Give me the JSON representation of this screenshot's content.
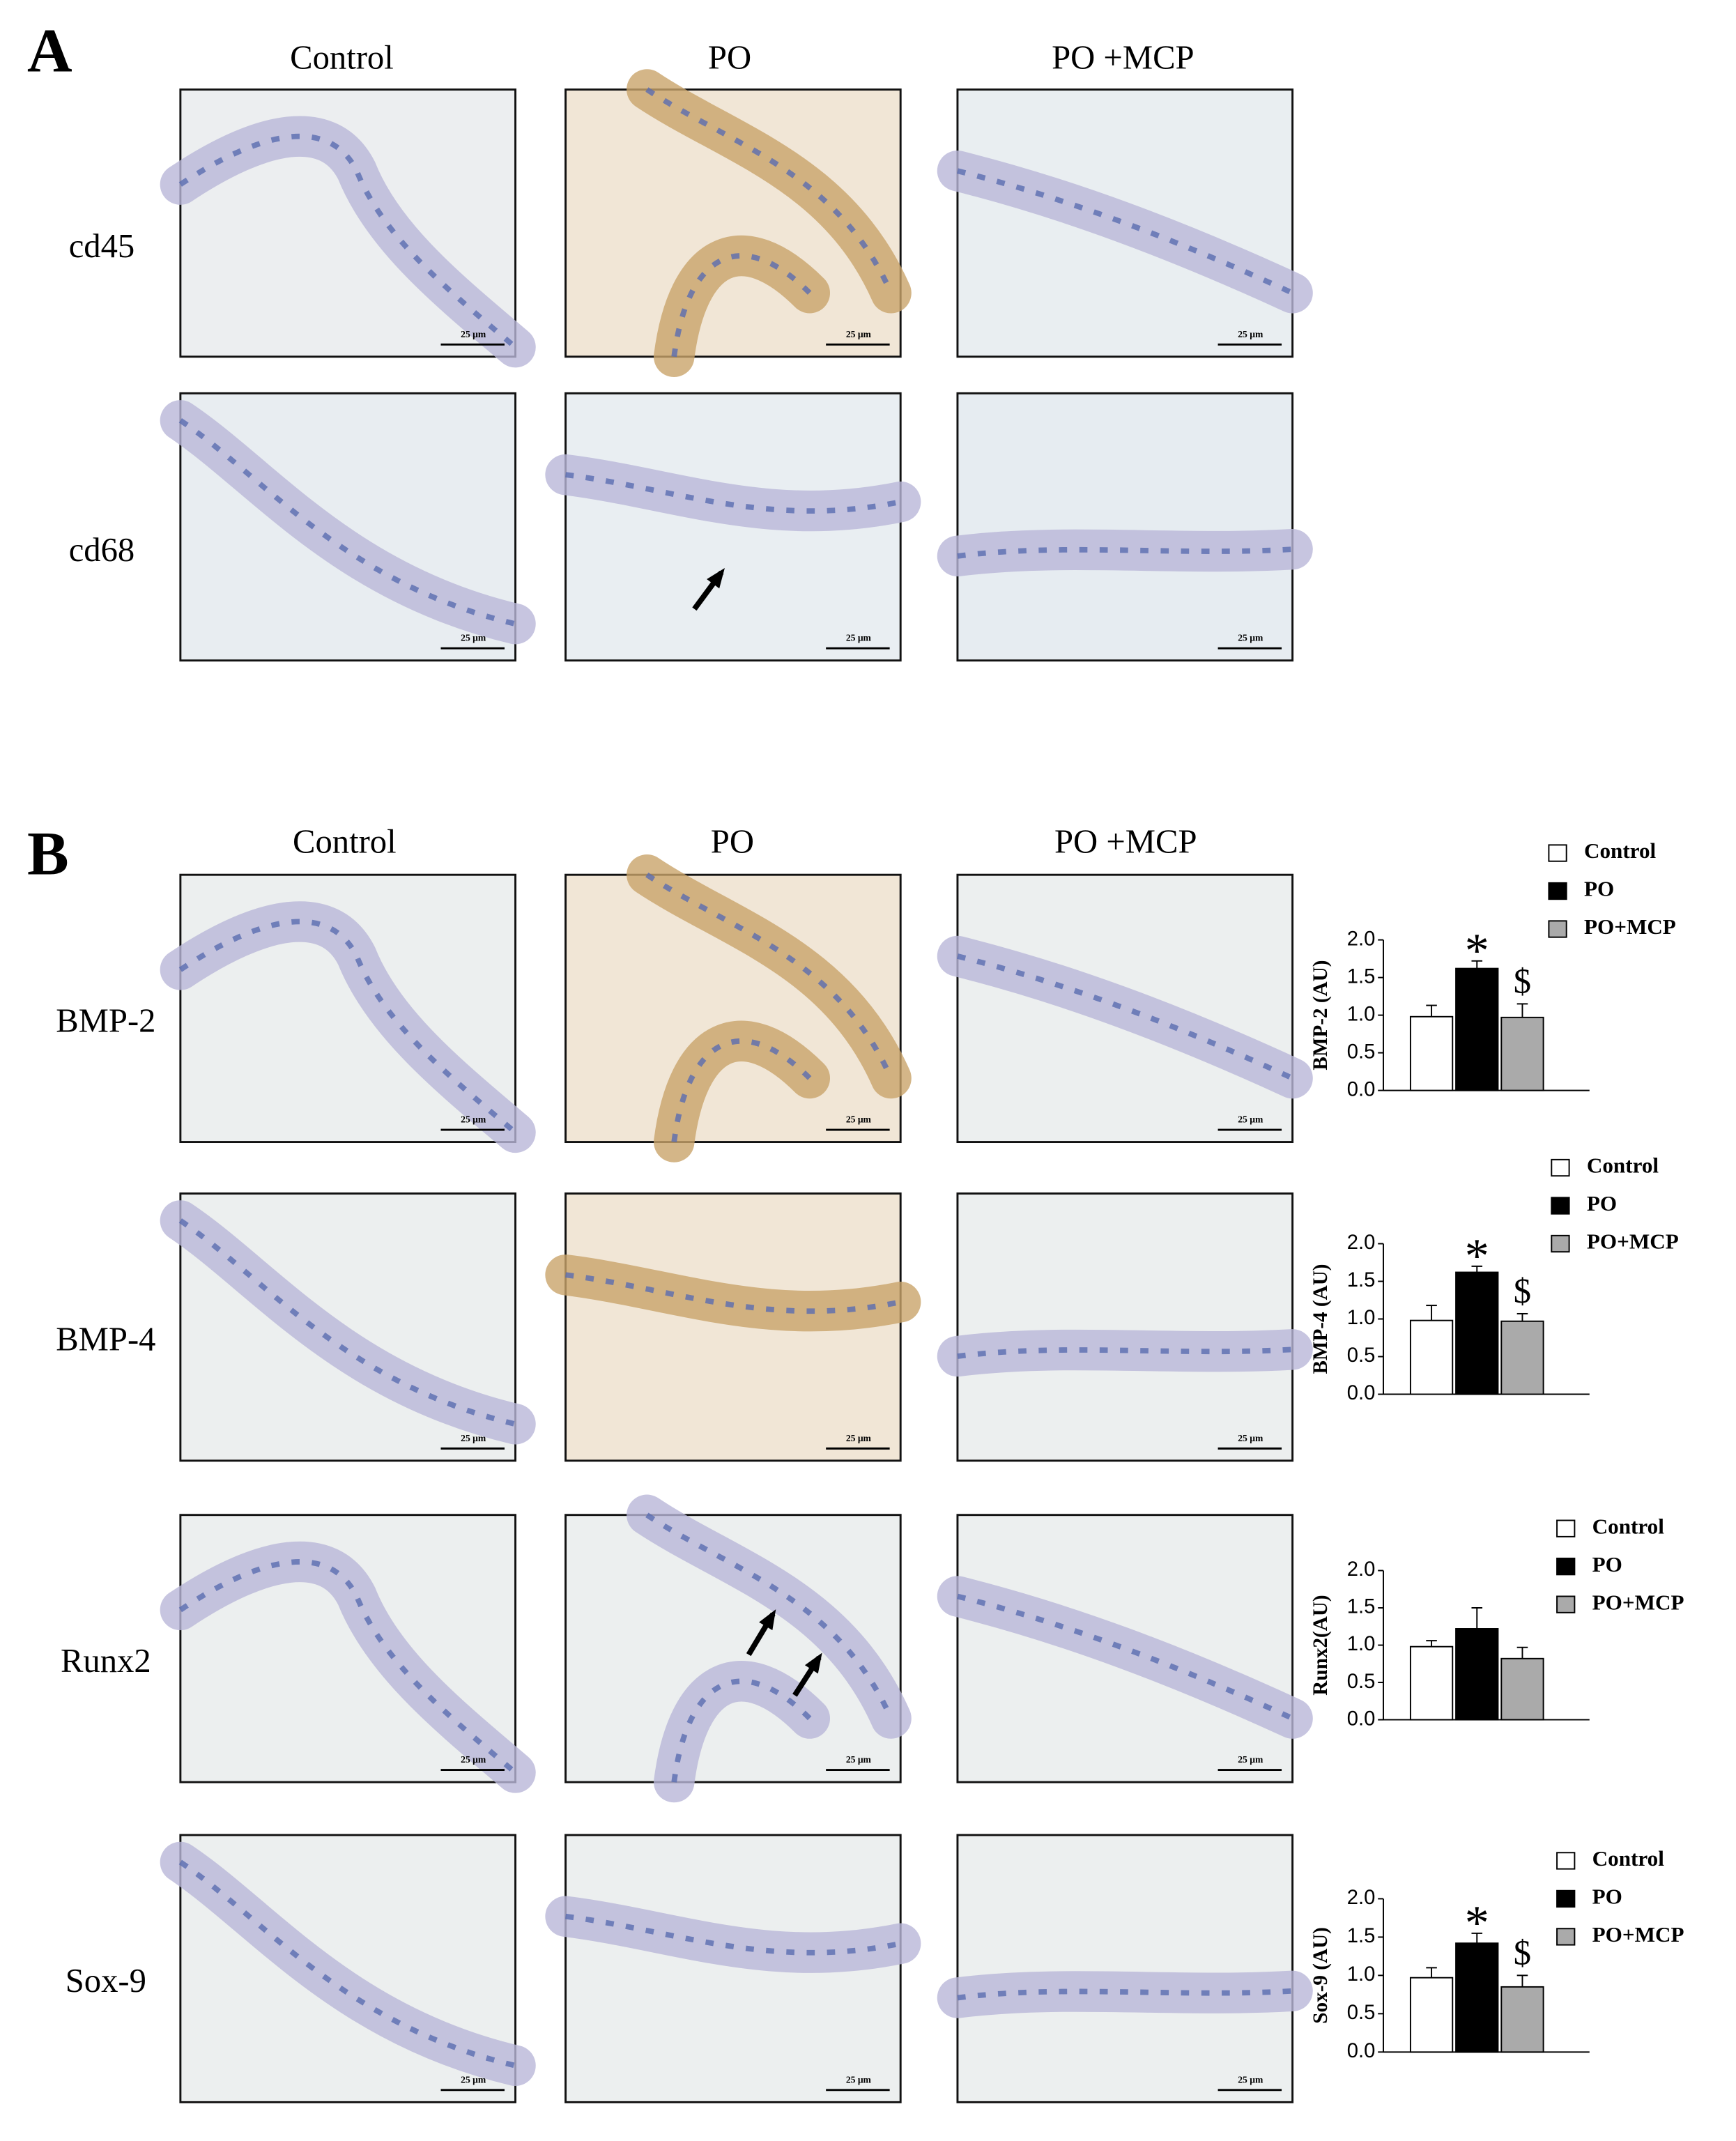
{
  "panel_a": {
    "label": "A",
    "columns": [
      "Control",
      "PO",
      "PO +MCP"
    ],
    "rows": [
      "cd45",
      "cd68"
    ]
  },
  "panel_b": {
    "label": "B",
    "columns": [
      "Control",
      "PO",
      "PO +MCP"
    ],
    "rows": [
      "BMP-2",
      "BMP-4",
      "Runx2",
      "Sox-9"
    ]
  },
  "scale_bar_label": "25 μm",
  "chart_data": [
    {
      "type": "bar",
      "ylabel": "BMP-2 (AU)",
      "ylim": [
        0,
        2
      ],
      "yticks": [
        {
          "value": 0,
          "label": "0.0"
        },
        {
          "value": 0.5,
          "label": "0.5"
        },
        {
          "value": 1,
          "label": "1.0"
        },
        {
          "value": 1.5,
          "label": "1.5"
        },
        {
          "value": 2,
          "label": "2.0"
        }
      ],
      "series": [
        {
          "name": "Control",
          "color": "#ffffff",
          "values": [
            0.98
          ],
          "errors": [
            0.15
          ]
        },
        {
          "name": "PO",
          "color": "#000000",
          "values": [
            1.62
          ],
          "errors": [
            0.1
          ],
          "annotation": "*"
        },
        {
          "name": "PO+MCP",
          "color": "#aaaaaa",
          "values": [
            0.97
          ],
          "errors": [
            0.18
          ],
          "annotation": "$"
        }
      ]
    },
    {
      "type": "bar",
      "ylabel": "BMP-4 (AU)",
      "ylim": [
        0,
        2
      ],
      "yticks": [
        {
          "value": 0,
          "label": "0.0"
        },
        {
          "value": 0.5,
          "label": "0.5"
        },
        {
          "value": 1,
          "label": "1.0"
        },
        {
          "value": 1.5,
          "label": "1.5"
        },
        {
          "value": 2,
          "label": "2.0"
        }
      ],
      "series": [
        {
          "name": "Control",
          "color": "#ffffff",
          "values": [
            0.98
          ],
          "errors": [
            0.2
          ]
        },
        {
          "name": "PO",
          "color": "#000000",
          "values": [
            1.62
          ],
          "errors": [
            0.08
          ],
          "annotation": "*"
        },
        {
          "name": "PO+MCP",
          "color": "#aaaaaa",
          "values": [
            0.97
          ],
          "errors": [
            0.1
          ],
          "annotation": "$"
        }
      ]
    },
    {
      "type": "bar",
      "ylabel": "Runx2(AU)",
      "ylim": [
        0,
        2
      ],
      "yticks": [
        {
          "value": 0,
          "label": "0.0"
        },
        {
          "value": 0.5,
          "label": "0.5"
        },
        {
          "value": 1,
          "label": "1.0"
        },
        {
          "value": 1.5,
          "label": "1.5"
        },
        {
          "value": 2,
          "label": "2.0"
        }
      ],
      "series": [
        {
          "name": "Control",
          "color": "#ffffff",
          "values": [
            0.98
          ],
          "errors": [
            0.08
          ]
        },
        {
          "name": "PO",
          "color": "#000000",
          "values": [
            1.22
          ],
          "errors": [
            0.28
          ]
        },
        {
          "name": "PO+MCP",
          "color": "#aaaaaa",
          "values": [
            0.82
          ],
          "errors": [
            0.15
          ]
        }
      ]
    },
    {
      "type": "bar",
      "ylabel": "Sox-9 (AU)",
      "ylim": [
        0,
        2
      ],
      "yticks": [
        {
          "value": 0,
          "label": "0.0"
        },
        {
          "value": 0.5,
          "label": "0.5"
        },
        {
          "value": 1,
          "label": "1.0"
        },
        {
          "value": 1.5,
          "label": "1.5"
        },
        {
          "value": 2,
          "label": "2.0"
        }
      ],
      "series": [
        {
          "name": "Control",
          "color": "#ffffff",
          "values": [
            0.97
          ],
          "errors": [
            0.13
          ]
        },
        {
          "name": "PO",
          "color": "#000000",
          "values": [
            1.42
          ],
          "errors": [
            0.13
          ],
          "annotation": "*"
        },
        {
          "name": "PO+MCP",
          "color": "#aaaaaa",
          "values": [
            0.85
          ],
          "errors": [
            0.15
          ],
          "annotation": "$"
        }
      ]
    }
  ]
}
